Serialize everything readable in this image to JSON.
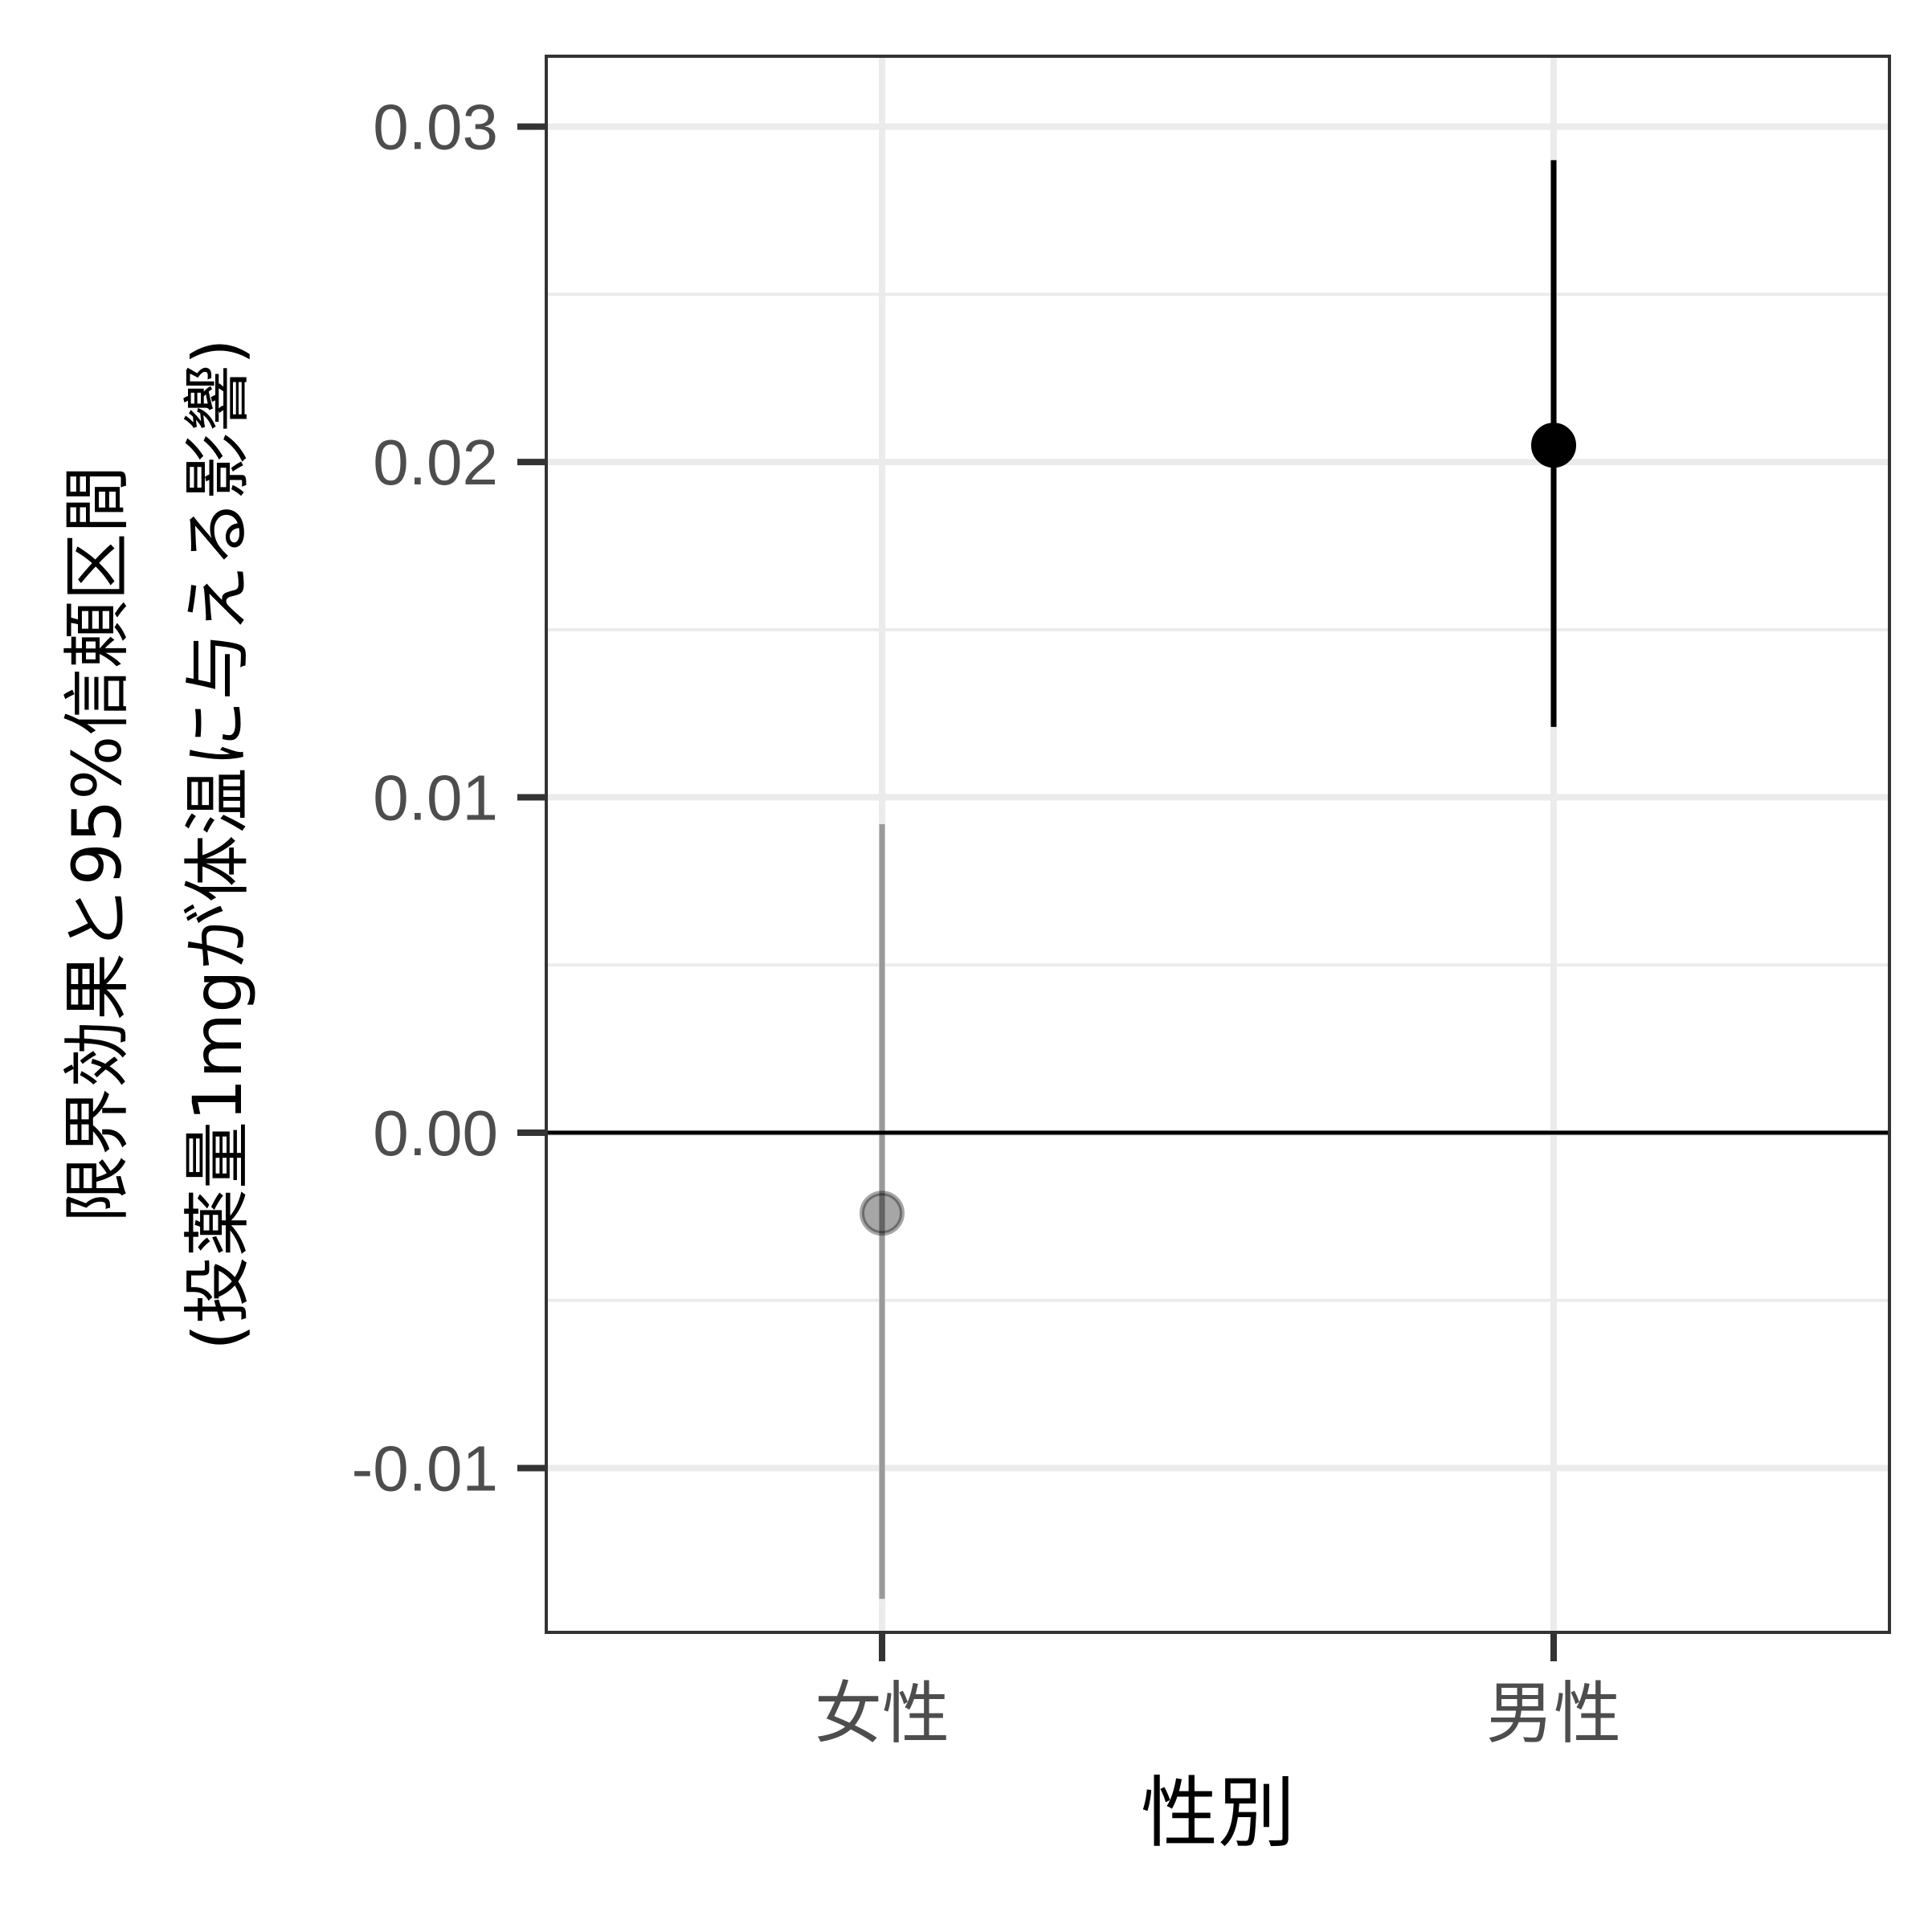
{
  "chart_data": {
    "type": "scatter",
    "title": "",
    "xlabel": "性別",
    "ylabel_lines": [
      "限界効果と95%信頼区間",
      "(投薬量1mgが体温に与える影響)"
    ],
    "categories": [
      "女性",
      "男性"
    ],
    "ylim": [
      -0.0149,
      0.0321
    ],
    "y_ticks": [
      -0.01,
      0.0,
      0.01,
      0.02,
      0.03
    ],
    "y_tick_labels": [
      "-0.01",
      "0.00",
      "0.01",
      "0.02",
      "0.03"
    ],
    "reference_line_y": 0,
    "grid": true,
    "points": [
      {
        "category": "女性",
        "estimate": -0.0024,
        "ci_low": -0.0139,
        "ci_high": 0.0092,
        "significant": false
      },
      {
        "category": "男性",
        "estimate": 0.0205,
        "ci_low": 0.0121,
        "ci_high": 0.029,
        "significant": true
      }
    ],
    "colors": {
      "significant": "#000000",
      "not_significant": "#9e9e9e",
      "grid": "#ebebeb",
      "panel_border": "#333333",
      "tick_label": "#4d4d4d"
    }
  }
}
